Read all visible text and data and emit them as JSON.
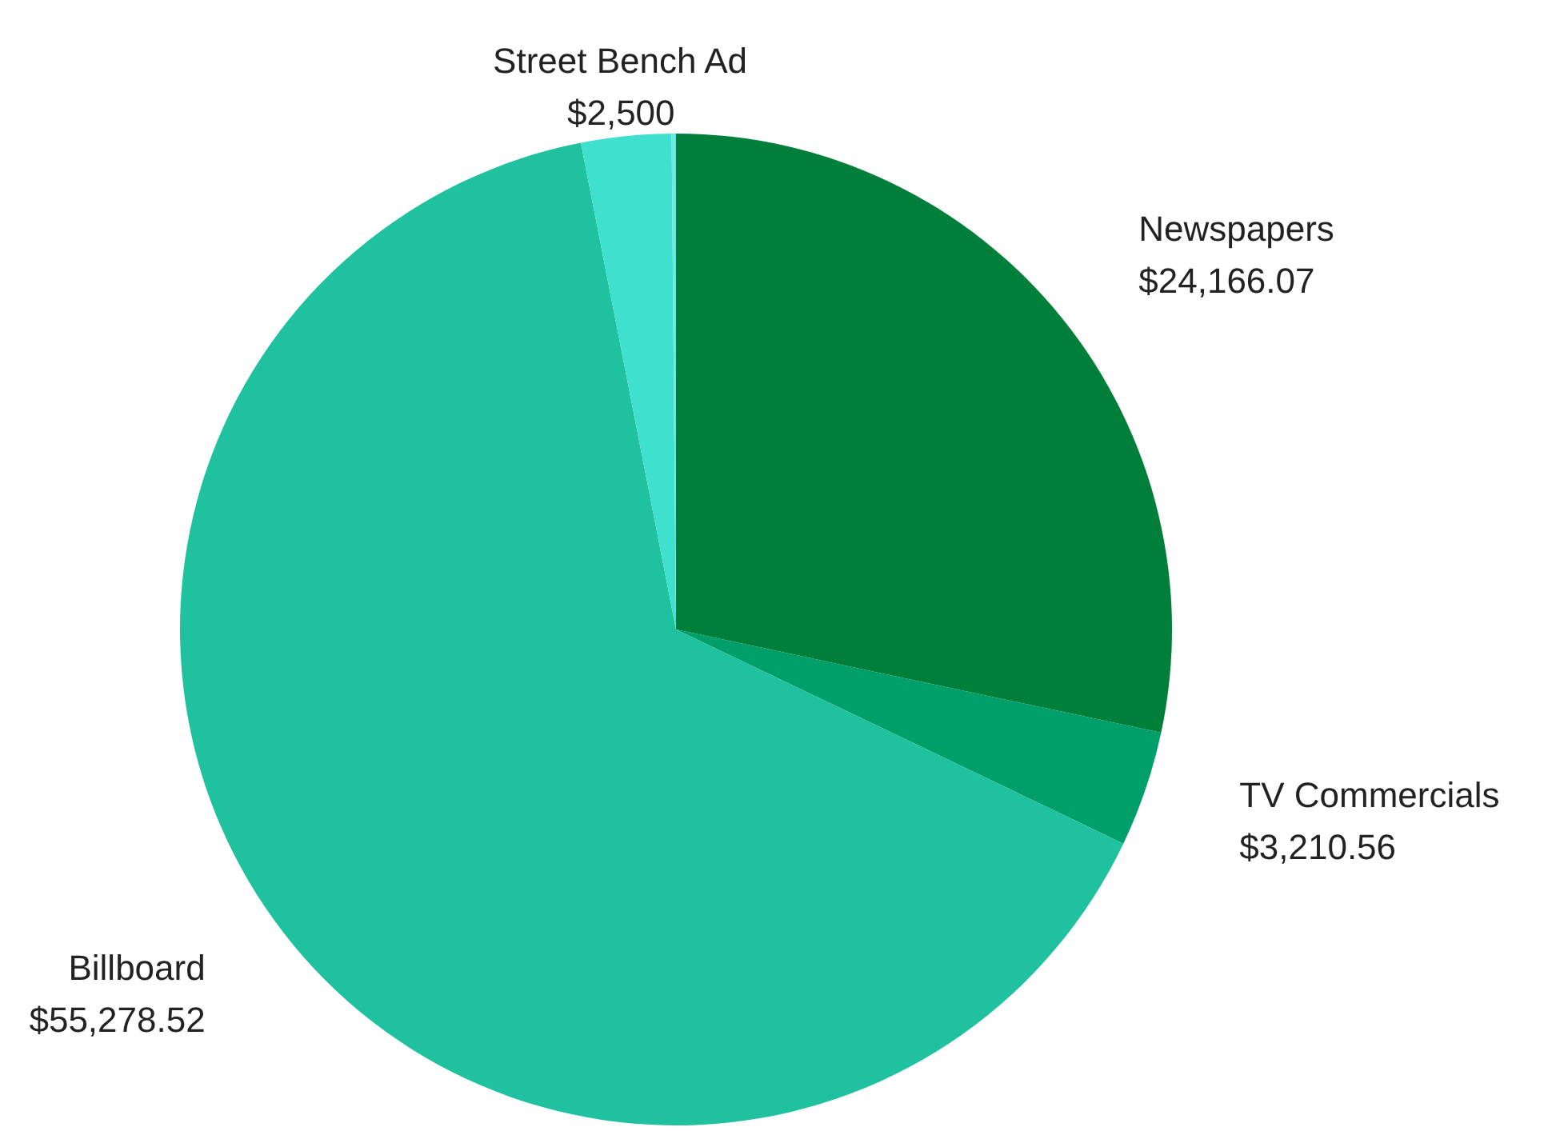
{
  "chart_data": {
    "type": "pie",
    "categories": [
      "Newspapers",
      "TV Commercials",
      "Billboard",
      "Street Bench Ad",
      null
    ],
    "values": [
      24166.07,
      3210.56,
      55278.52,
      2500,
      120
    ],
    "value_labels": [
      "$24,166.07",
      "$3,210.56",
      "$55,278.52",
      "$2,500",
      null
    ],
    "colors": [
      "#007f3a",
      "#009e69",
      "#20c19e",
      "#40e0cf",
      "#6de8e0"
    ]
  }
}
